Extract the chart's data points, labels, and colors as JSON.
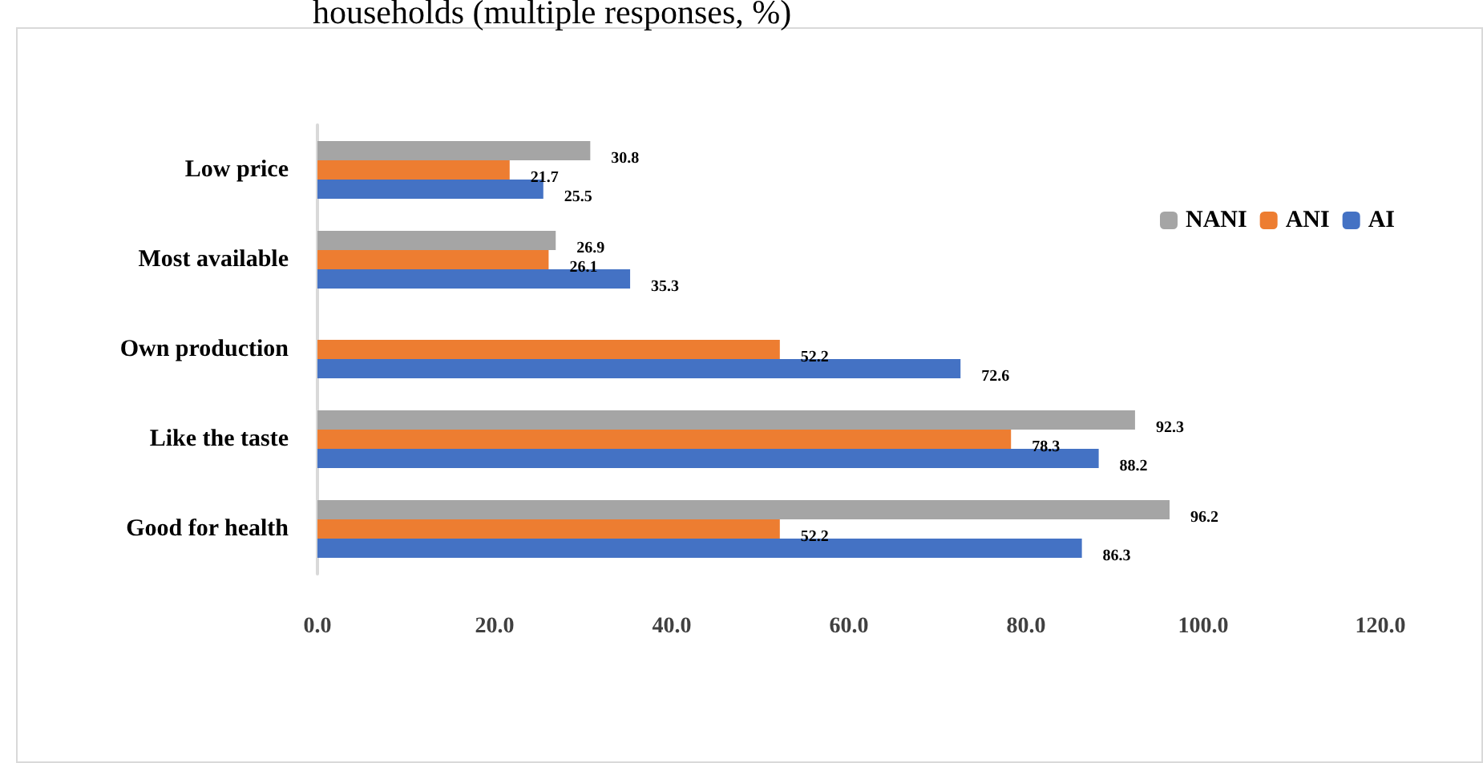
{
  "chart_data": {
    "type": "bar",
    "orientation": "horizontal",
    "title": "households (multiple responses, %)",
    "categories": [
      "Low price",
      "Most available",
      "Own production",
      "Like the taste",
      "Good for health"
    ],
    "series": [
      {
        "name": "NANI",
        "color": "#a5a5a5",
        "values": [
          30.8,
          26.9,
          null,
          92.3,
          96.2
        ]
      },
      {
        "name": "ANI",
        "color": "#ed7d31",
        "values": [
          21.7,
          26.1,
          52.2,
          78.3,
          52.2
        ]
      },
      {
        "name": "AI",
        "color": "#4472c4",
        "values": [
          25.5,
          35.3,
          72.6,
          88.2,
          86.3
        ]
      }
    ],
    "xlim": [
      0,
      120
    ],
    "xticks": [
      {
        "value": 0,
        "label": "0.0"
      },
      {
        "value": 20,
        "label": "20.0"
      },
      {
        "value": 40,
        "label": "40.0"
      },
      {
        "value": 60,
        "label": "60.0"
      },
      {
        "value": 80,
        "label": "80.0"
      },
      {
        "value": 100,
        "label": "100.0"
      },
      {
        "value": 120,
        "label": "120.0"
      }
    ],
    "data_labels": true,
    "grid": false,
    "legend": "right"
  }
}
